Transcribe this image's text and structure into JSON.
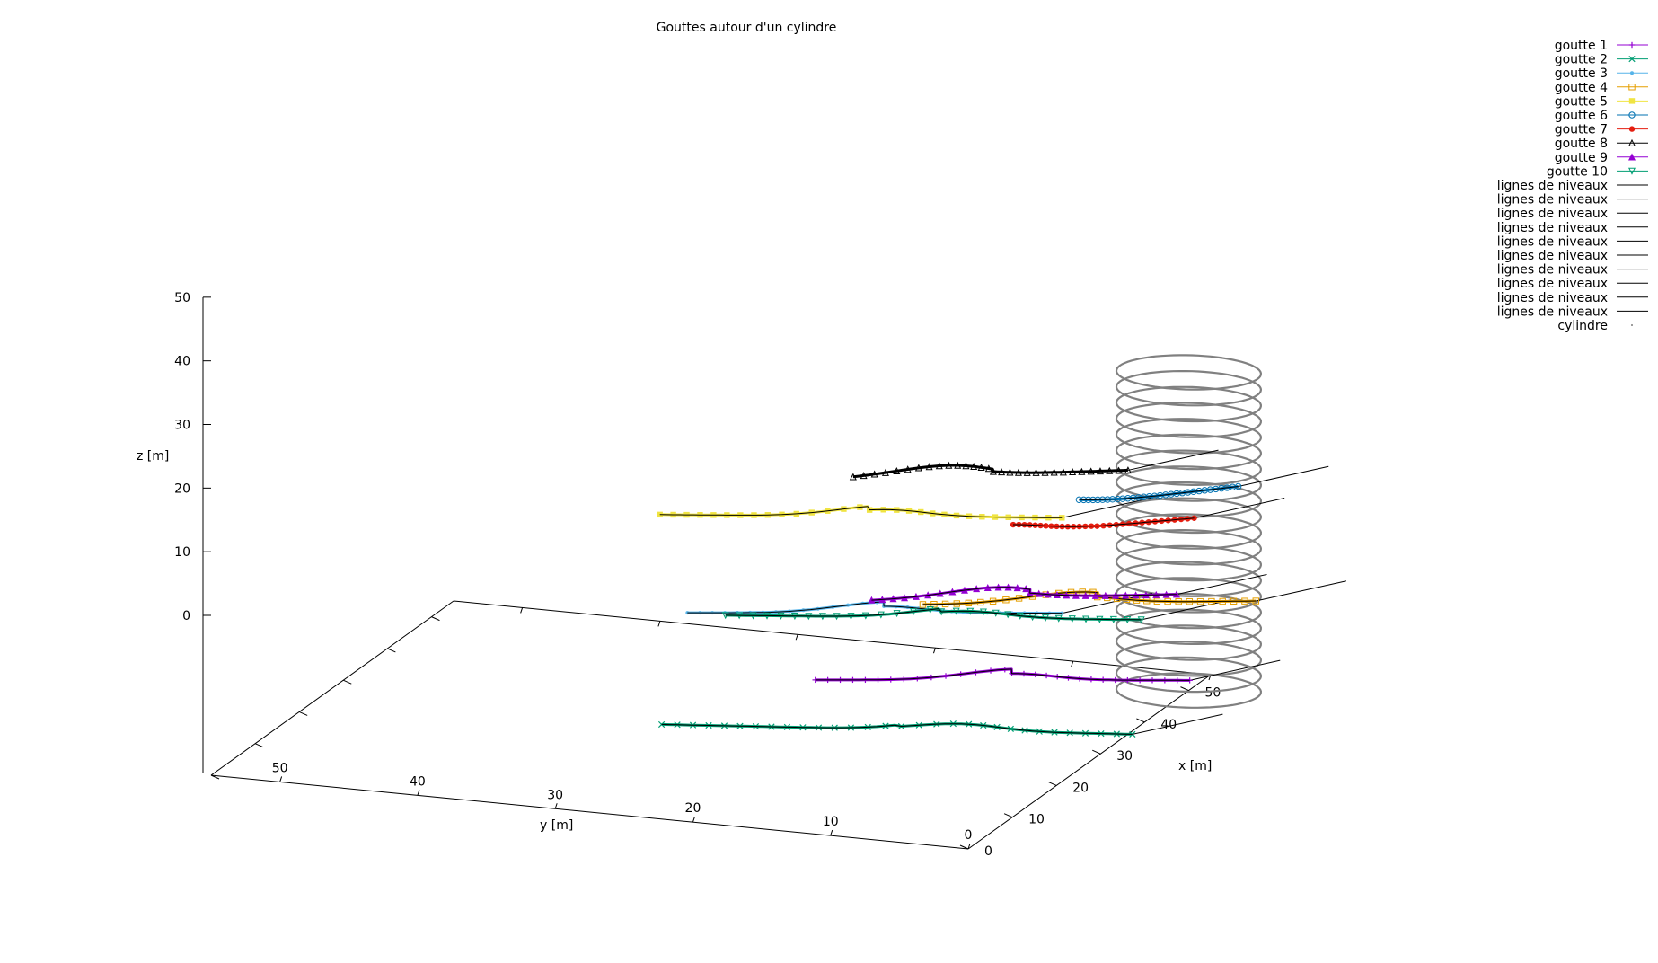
{
  "chart_data": {
    "type": "line",
    "projection": "3d",
    "title": "Gouttes autour d'un cylindre",
    "xlabel": "x [m]",
    "ylabel": "y [m]",
    "zlabel": "z [m]",
    "xlim": [
      0,
      55
    ],
    "ylim": [
      0,
      55
    ],
    "zlim": [
      0,
      50
    ],
    "x_ticks": [
      "0",
      "10",
      "20",
      "30",
      "40",
      "50"
    ],
    "y_ticks": [
      "0",
      "10",
      "20",
      "30",
      "40",
      "50"
    ],
    "z_ticks": [
      "0",
      "10",
      "20",
      "30",
      "40",
      "50"
    ],
    "grid": false,
    "legend_position": "top-right",
    "cylinder": {
      "name": "cylindre",
      "center_x": 50,
      "center_y": 0,
      "radius": 5,
      "z_range": [
        0,
        50
      ],
      "color": "#808080"
    },
    "series": [
      {
        "name": "goutte 1",
        "color": "#9400d3",
        "marker": "plus",
        "z": 5,
        "x_start": 34,
        "y_start": 22
      },
      {
        "name": "goutte 2",
        "color": "#009e73",
        "marker": "cross",
        "z": 3,
        "x_start": 21,
        "y_start": 29
      },
      {
        "name": "goutte 3",
        "color": "#56b4e9",
        "marker": "star",
        "z": 30,
        "x_start": 5,
        "y_start": 22
      },
      {
        "name": "goutte 4",
        "color": "#e69f00",
        "marker": "square",
        "z": 10,
        "x_start": 49,
        "y_start": 19
      },
      {
        "name": "goutte 5",
        "color": "#f0e442",
        "marker": "filled-square",
        "z": 45,
        "x_start": 5,
        "y_start": 24
      },
      {
        "name": "goutte 6",
        "color": "#0072b2",
        "marker": "circle",
        "z": 30,
        "x_start": 45,
        "y_start": 7
      },
      {
        "name": "goutte 7",
        "color": "#e51e10",
        "marker": "filled-circle",
        "z": 30,
        "x_start": 35,
        "y_start": 9
      },
      {
        "name": "goutte 8",
        "color": "#000000",
        "marker": "triangle",
        "z": 45,
        "x_start": 20,
        "y_start": 15
      },
      {
        "name": "goutte 9",
        "color": "#9400d3",
        "marker": "filled-triangle",
        "z": 20,
        "x_start": 31,
        "y_start": 17
      },
      {
        "name": "goutte 10",
        "color": "#009e73",
        "marker": "inverted-triangle",
        "z": 20,
        "x_start": 23,
        "y_start": 25
      }
    ],
    "level_lines": {
      "name": "lignes de niveaux",
      "count": 10,
      "color": "#000000"
    },
    "legend_entries": [
      "goutte 1",
      "goutte 2",
      "goutte 3",
      "goutte 4",
      "goutte 5",
      "goutte 6",
      "goutte 7",
      "goutte 8",
      "goutte 9",
      "goutte 10",
      "lignes de niveaux",
      "lignes de niveaux",
      "lignes de niveaux",
      "lignes de niveaux",
      "lignes de niveaux",
      "lignes de niveaux",
      "lignes de niveaux",
      "lignes de niveaux",
      "lignes de niveaux",
      "lignes de niveaux",
      "cylindre"
    ]
  }
}
